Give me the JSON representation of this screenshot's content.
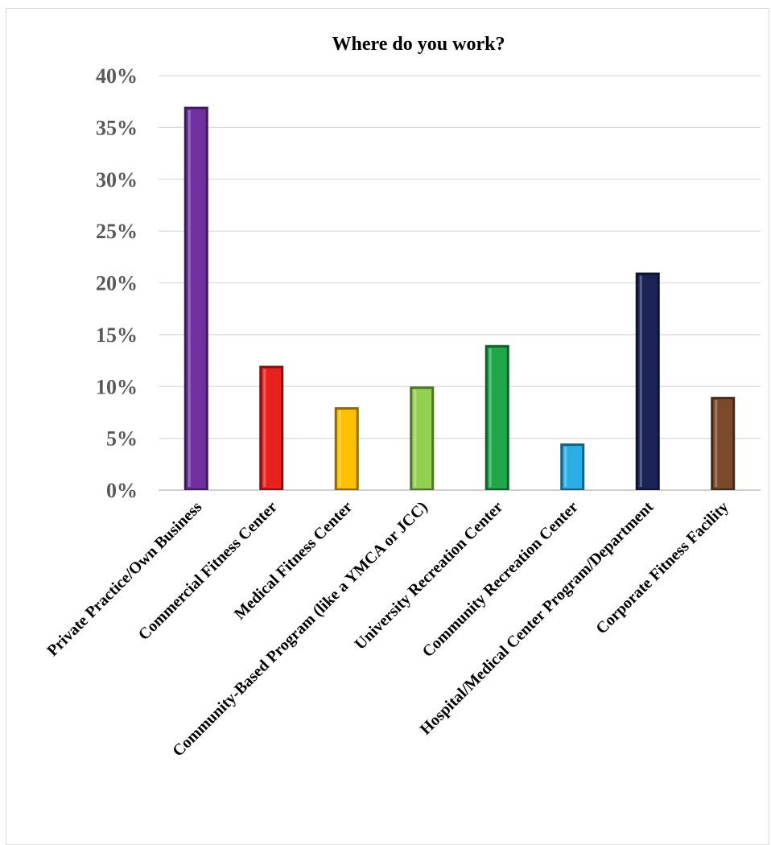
{
  "chart_data": {
    "type": "bar",
    "title": "Where do you work?",
    "xlabel": "",
    "ylabel": "",
    "ylim": [
      0,
      40
    ],
    "yticks": [
      "0%",
      "5%",
      "10%",
      "15%",
      "20%",
      "25%",
      "30%",
      "35%",
      "40%"
    ],
    "ytick_values": [
      0,
      5,
      10,
      15,
      20,
      25,
      30,
      35,
      40
    ],
    "grid": true,
    "legend": "none",
    "categories": [
      "Private Practice/Own Business",
      "Commercial Fitness Center",
      "Medical Fitness Center",
      "Community-Based Program (like a YMCA or JCC)",
      "University Recreation Center",
      "Community Recreation Center",
      "Hospital/Medical Center Program/Department",
      "Corporate Fitness Facility"
    ],
    "values": [
      37,
      12,
      8,
      10,
      14,
      4.5,
      21,
      9
    ],
    "colors": [
      "#7030a0",
      "#e8211f",
      "#ffc000",
      "#92d050",
      "#1fa84a",
      "#2aaee5",
      "#1b2456",
      "#7a4a2a"
    ]
  }
}
